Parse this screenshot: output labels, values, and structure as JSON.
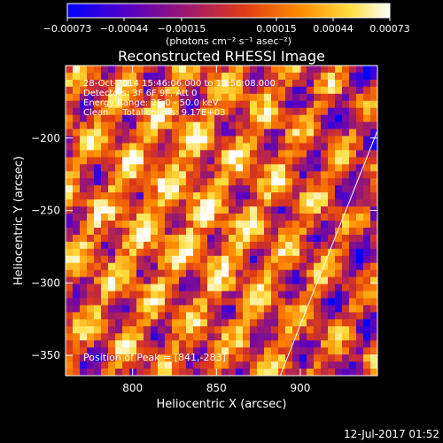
{
  "chart_data": {
    "type": "heatmap",
    "title": "Reconstructed RHESSI Image",
    "xlabel": "Heliocentric X (arcsec)",
    "ylabel": "Heliocentric Y (arcsec)",
    "xlim": [
      760,
      946
    ],
    "ylim": [
      -364,
      -150
    ],
    "x_ticks": [
      800,
      850,
      900
    ],
    "y_ticks": [
      -350,
      -300,
      -250,
      -200
    ],
    "x_tick_labels": [
      "800",
      "850",
      "900"
    ],
    "y_tick_labels": [
      "−350",
      "−300",
      "−250",
      "−200"
    ],
    "colorbar": {
      "range": [
        -0.00073,
        0.00073
      ],
      "tick_labels": [
        "−0.00073",
        "−0.00044",
        "−0.00015",
        "0.00015",
        "0.00044",
        "0.00073"
      ],
      "unit_label": "(photons cm⁻² s⁻¹ asec⁻²)",
      "colors": [
        "#0000ff",
        "#5a00c0",
        "#a01a6a",
        "#e03c14",
        "#ff8a00",
        "#ffe040",
        "#ffffff"
      ]
    },
    "annotations": [
      "28-Oct-2014 15:46:06.000 to 15:56:08.000",
      "Detectors: 3F 6F 9F, Att 0",
      "Energy Range: 25.0 - 50.0 keV",
      "Clean     Total counts: 9.17E+03"
    ],
    "peak_label": "Position of Peak = [841,-283]",
    "peak": [
      841,
      -283
    ],
    "limb_line": [
      [
        888,
        -364
      ],
      [
        946,
        -195
      ]
    ],
    "grid": false
  },
  "timestamp": "12-Jul-2017 01:52"
}
